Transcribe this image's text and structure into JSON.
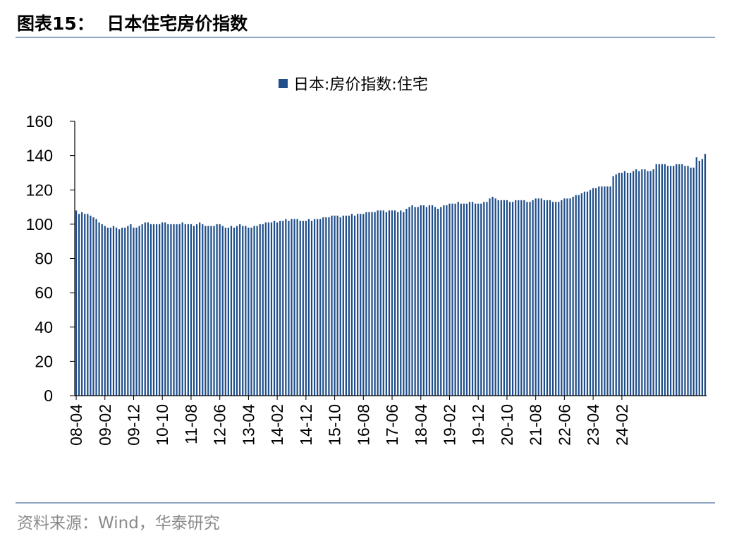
{
  "header": {
    "title": "图表15：  日本住宅房价指数"
  },
  "footer": {
    "source": "资料来源：Wind，华泰研究"
  },
  "colors": {
    "bar": "#1f4e8a",
    "rule": "#8fa6c3",
    "axis": "#000000"
  },
  "chart_data": {
    "type": "bar",
    "title": "",
    "xlabel": "",
    "ylabel": "",
    "ylim": [
      0,
      160
    ],
    "yticks": [
      0,
      20,
      40,
      60,
      80,
      100,
      120,
      140,
      160
    ],
    "grid": false,
    "legend_position": "top-center",
    "start_month": "2008-04",
    "x_tick_labels": [
      "08-04",
      "09-02",
      "09-12",
      "10-10",
      "11-08",
      "12-06",
      "13-04",
      "14-02",
      "14-12",
      "15-10",
      "16-08",
      "17-06",
      "18-04",
      "19-02",
      "19-12",
      "20-10",
      "21-08",
      "22-06",
      "23-04",
      "24-02"
    ],
    "series": [
      {
        "name": "日本:房价指数:住宅",
        "values": [
          108,
          106,
          107,
          106,
          106,
          105,
          104,
          103,
          101,
          100,
          99,
          98,
          98,
          99,
          98,
          97,
          98,
          98,
          99,
          100,
          98,
          98,
          99,
          100,
          101,
          101,
          100,
          100,
          100,
          100,
          101,
          101,
          100,
          100,
          100,
          100,
          100,
          101,
          100,
          100,
          100,
          99,
          100,
          101,
          100,
          99,
          99,
          99,
          99,
          100,
          100,
          99,
          98,
          98,
          99,
          98,
          99,
          100,
          99,
          99,
          98,
          98,
          99,
          99,
          100,
          100,
          101,
          101,
          101,
          102,
          101,
          102,
          102,
          103,
          102,
          103,
          103,
          103,
          102,
          102,
          102,
          103,
          102,
          103,
          103,
          103,
          104,
          104,
          104,
          105,
          105,
          105,
          104,
          105,
          105,
          105,
          106,
          105,
          106,
          106,
          106,
          107,
          107,
          107,
          107,
          108,
          108,
          108,
          107,
          108,
          108,
          108,
          107,
          108,
          107,
          109,
          110,
          111,
          110,
          110,
          111,
          111,
          110,
          111,
          111,
          110,
          109,
          110,
          111,
          111,
          112,
          112,
          112,
          113,
          112,
          112,
          112,
          113,
          113,
          112,
          112,
          112,
          113,
          113,
          115,
          116,
          115,
          114,
          114,
          114,
          114,
          113,
          113,
          114,
          114,
          114,
          114,
          113,
          113,
          114,
          115,
          115,
          115,
          114,
          114,
          114,
          113,
          113,
          113,
          114,
          115,
          115,
          115,
          116,
          117,
          117,
          118,
          119,
          119,
          120,
          121,
          121,
          122,
          122,
          122,
          122,
          122,
          128,
          129,
          130,
          130,
          131,
          130,
          130,
          131,
          132,
          131,
          132,
          132,
          131,
          131,
          132,
          135,
          135,
          135,
          135,
          134,
          134,
          134,
          135,
          135,
          135,
          134,
          134,
          133,
          133,
          139,
          137,
          138,
          141
        ]
      }
    ]
  }
}
